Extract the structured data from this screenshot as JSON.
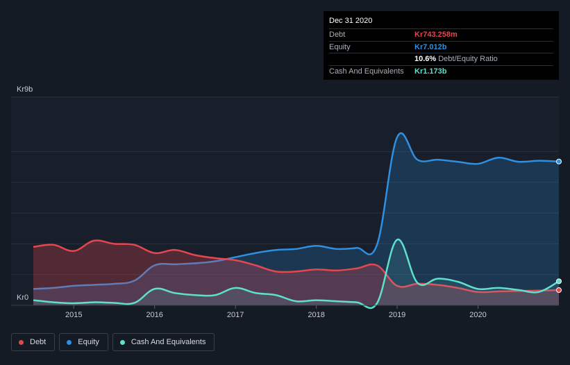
{
  "chart_data": {
    "type": "area",
    "y_top_label": "Kr9b",
    "y_bottom_label": "Kr0",
    "ylim": [
      0,
      9
    ],
    "xlim": [
      2014.5,
      2021.0
    ],
    "x_ticks": [
      {
        "value": 2015,
        "label": "2015"
      },
      {
        "value": 2016,
        "label": "2016"
      },
      {
        "value": 2017,
        "label": "2017"
      },
      {
        "value": 2018,
        "label": "2018"
      },
      {
        "value": 2019,
        "label": "2019"
      },
      {
        "value": 2020,
        "label": "2020"
      }
    ],
    "series": [
      {
        "name": "Debt",
        "color": "#e5474f",
        "points": [
          [
            2014.5,
            2.85
          ],
          [
            2014.75,
            2.95
          ],
          [
            2015.0,
            2.65
          ],
          [
            2015.25,
            3.15
          ],
          [
            2015.5,
            3.0
          ],
          [
            2015.75,
            2.95
          ],
          [
            2016.0,
            2.55
          ],
          [
            2016.25,
            2.7
          ],
          [
            2016.5,
            2.45
          ],
          [
            2016.75,
            2.3
          ],
          [
            2017.0,
            2.2
          ],
          [
            2017.25,
            1.95
          ],
          [
            2017.5,
            1.65
          ],
          [
            2017.75,
            1.65
          ],
          [
            2018.0,
            1.75
          ],
          [
            2018.25,
            1.7
          ],
          [
            2018.5,
            1.8
          ],
          [
            2018.75,
            1.95
          ],
          [
            2019.0,
            0.95
          ],
          [
            2019.25,
            1.05
          ],
          [
            2019.5,
            1.0
          ],
          [
            2019.75,
            0.85
          ],
          [
            2020.0,
            0.65
          ],
          [
            2020.25,
            0.68
          ],
          [
            2020.5,
            0.7
          ],
          [
            2020.75,
            0.72
          ],
          [
            2021.0,
            0.743
          ]
        ]
      },
      {
        "name": "Equity",
        "color": "#2f8fe0",
        "points": [
          [
            2014.5,
            0.8
          ],
          [
            2014.75,
            0.85
          ],
          [
            2015.0,
            0.95
          ],
          [
            2015.25,
            1.0
          ],
          [
            2015.5,
            1.05
          ],
          [
            2015.75,
            1.2
          ],
          [
            2016.0,
            1.95
          ],
          [
            2016.25,
            2.0
          ],
          [
            2016.5,
            2.05
          ],
          [
            2016.75,
            2.15
          ],
          [
            2017.0,
            2.35
          ],
          [
            2017.25,
            2.55
          ],
          [
            2017.5,
            2.7
          ],
          [
            2017.75,
            2.75
          ],
          [
            2018.0,
            2.9
          ],
          [
            2018.25,
            2.75
          ],
          [
            2018.5,
            2.8
          ],
          [
            2018.75,
            2.95
          ],
          [
            2019.0,
            8.2
          ],
          [
            2019.25,
            7.1
          ],
          [
            2019.5,
            7.1
          ],
          [
            2019.75,
            7.0
          ],
          [
            2020.0,
            6.9
          ],
          [
            2020.25,
            7.2
          ],
          [
            2020.5,
            7.0
          ],
          [
            2020.75,
            7.05
          ],
          [
            2021.0,
            7.012
          ]
        ]
      },
      {
        "name": "Cash And Equivalents",
        "color": "#5fe0cd",
        "points": [
          [
            2014.5,
            0.25
          ],
          [
            2014.75,
            0.15
          ],
          [
            2015.0,
            0.1
          ],
          [
            2015.25,
            0.15
          ],
          [
            2015.5,
            0.12
          ],
          [
            2015.75,
            0.12
          ],
          [
            2016.0,
            0.8
          ],
          [
            2016.25,
            0.6
          ],
          [
            2016.5,
            0.5
          ],
          [
            2016.75,
            0.5
          ],
          [
            2017.0,
            0.85
          ],
          [
            2017.25,
            0.6
          ],
          [
            2017.5,
            0.5
          ],
          [
            2017.75,
            0.2
          ],
          [
            2018.0,
            0.25
          ],
          [
            2018.25,
            0.2
          ],
          [
            2018.5,
            0.15
          ],
          [
            2018.75,
            0.1
          ],
          [
            2019.0,
            3.2
          ],
          [
            2019.25,
            1.1
          ],
          [
            2019.5,
            1.3
          ],
          [
            2019.75,
            1.15
          ],
          [
            2020.0,
            0.8
          ],
          [
            2020.25,
            0.85
          ],
          [
            2020.5,
            0.75
          ],
          [
            2020.75,
            0.65
          ],
          [
            2021.0,
            1.173
          ]
        ]
      }
    ]
  },
  "tooltip": {
    "date": "Dec 31 2020",
    "rows": [
      {
        "label": "Debt",
        "value": "Kr743.258m",
        "color": "#e5474f"
      },
      {
        "label": "Equity",
        "value": "Kr7.012b",
        "color": "#2f8fe0"
      },
      {
        "label": "",
        "value": "10.6%",
        "suffix": "Debt/Equity Ratio",
        "color": "#ffffff"
      },
      {
        "label": "Cash And Equivalents",
        "value": "Kr1.173b",
        "color": "#5fe0cd"
      }
    ]
  },
  "legend": [
    {
      "label": "Debt",
      "color": "#e5474f"
    },
    {
      "label": "Equity",
      "color": "#2f8fe0"
    },
    {
      "label": "Cash And Equivalents",
      "color": "#5fe0cd"
    }
  ]
}
